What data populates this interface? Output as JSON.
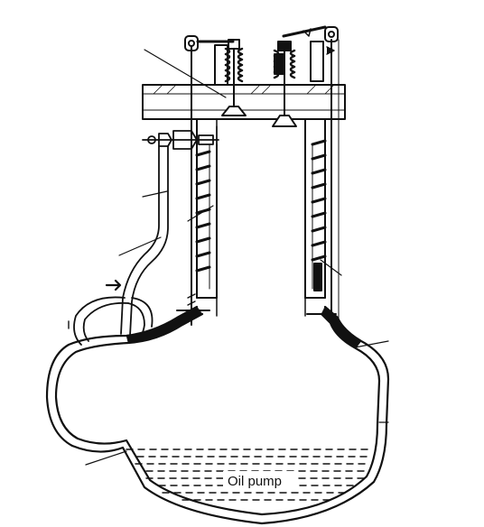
{
  "diagram": {
    "labels": {
      "oil_pump": "Oil pump"
    },
    "colors": {
      "ink": "#111111",
      "background": "#ffffff"
    }
  }
}
